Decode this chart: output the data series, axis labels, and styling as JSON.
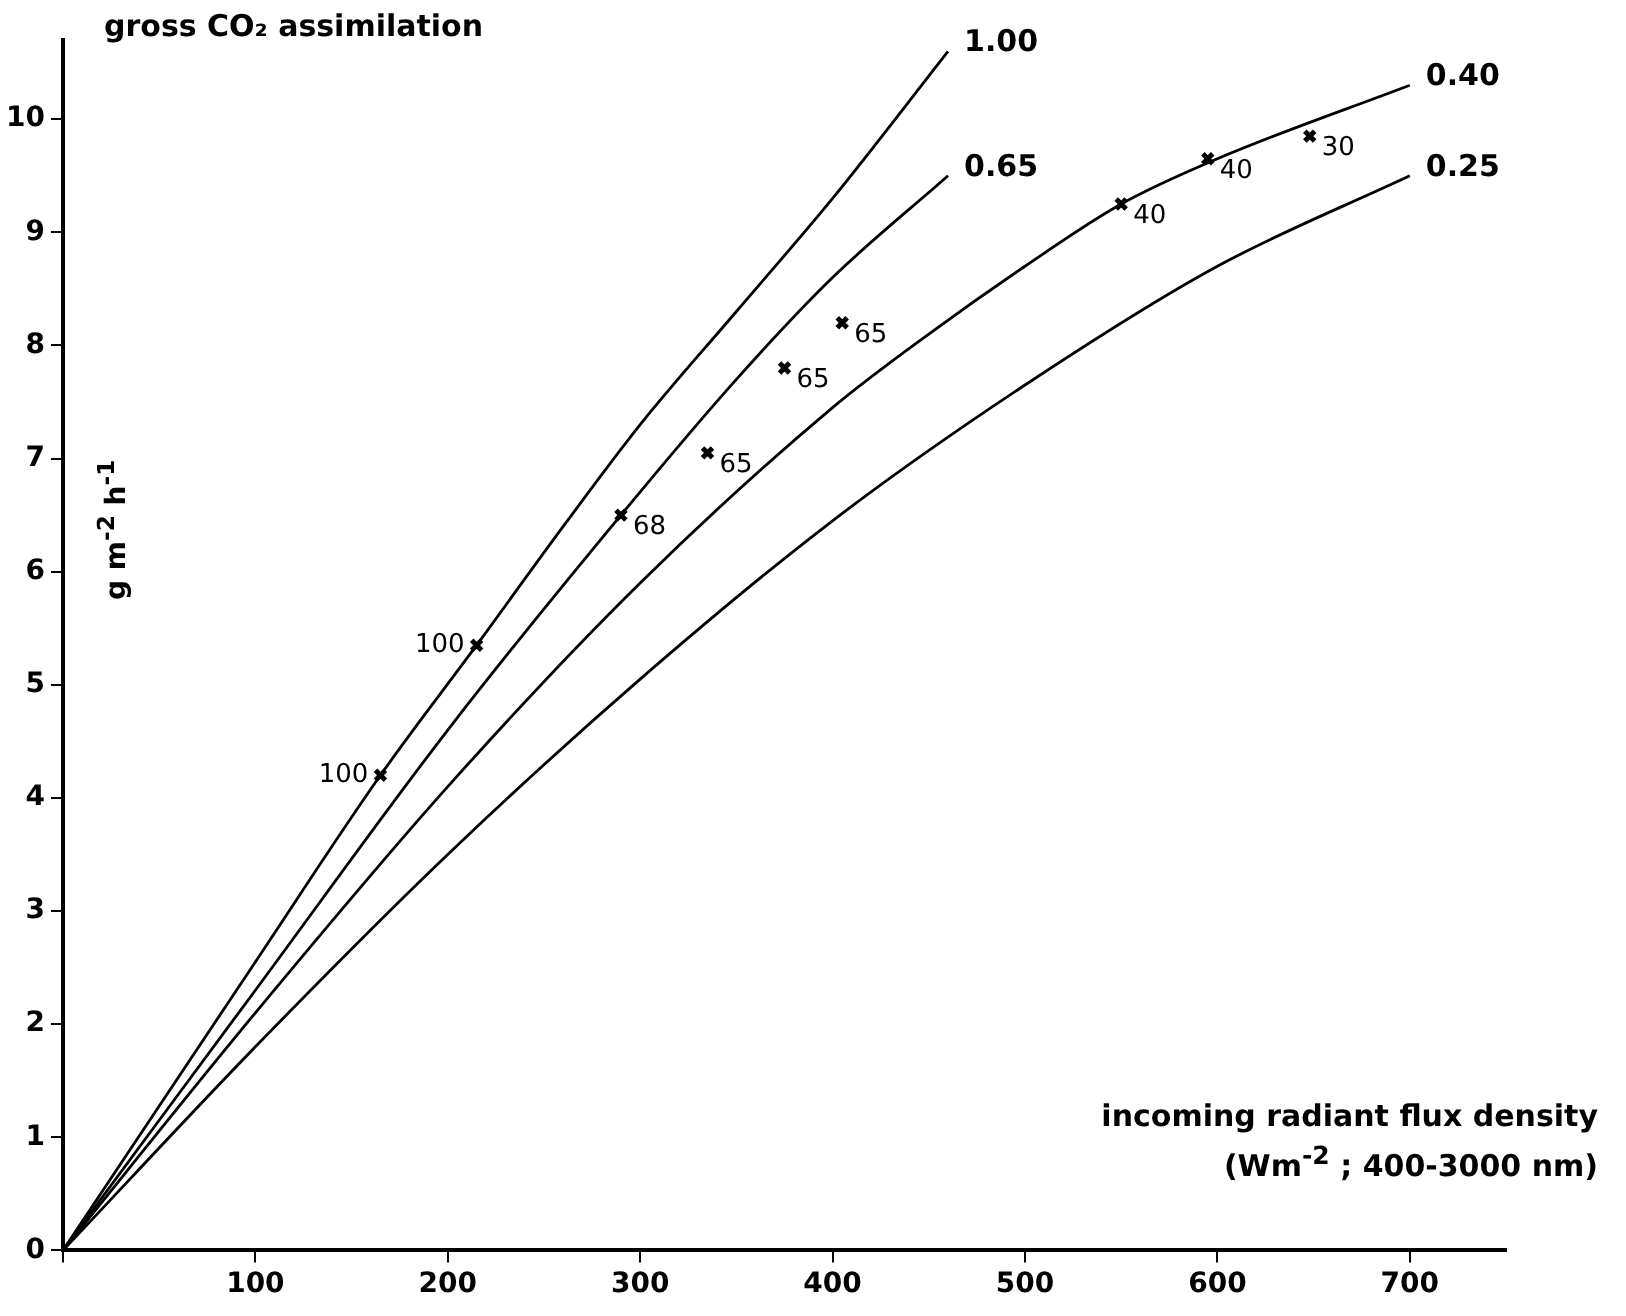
{
  "chart_data": {
    "type": "line",
    "title": "gross CO₂ assimilation",
    "ylabel": "g m$^{-2}$ h$^{-1}$",
    "xlabel": "incoming radiant flux density\n(Wm$^{-2}$ ; 400-3000 nm)",
    "xlim": [
      0,
      750
    ],
    "xticks": [
      {
        "value": 0,
        "label": null
      },
      100,
      200,
      300,
      400,
      500,
      600,
      700
    ],
    "ylim": [
      0,
      10.7
    ],
    "yticks": [
      0,
      1,
      2,
      3,
      4,
      5,
      6,
      7,
      8,
      9,
      10
    ],
    "grid": false,
    "legend": false,
    "line_style": "solid",
    "marker": "none",
    "series": [
      {
        "name": "1.00",
        "color": "#000000",
        "x": [
          0,
          100,
          165,
          215,
          260,
          300,
          350,
          400,
          460
        ],
        "values": [
          0,
          2.55,
          4.2,
          5.35,
          6.4,
          7.3,
          8.3,
          9.3,
          10.6
        ]
      },
      {
        "name": "0.65",
        "color": "#000000",
        "x": [
          0,
          100,
          200,
          290,
          350,
          400,
          460
        ],
        "values": [
          0,
          2.3,
          4.6,
          6.5,
          7.7,
          8.6,
          9.5
        ]
      },
      {
        "name": "0.40",
        "color": "#000000",
        "x": [
          0,
          100,
          200,
          300,
          400,
          450,
          500,
          550,
          600,
          700
        ],
        "values": [
          0,
          2.1,
          4.1,
          5.9,
          7.45,
          8.1,
          8.7,
          9.25,
          9.65,
          10.3
        ]
      },
      {
        "name": "0.25",
        "color": "#000000",
        "x": [
          0,
          100,
          200,
          300,
          400,
          500,
          600,
          700
        ],
        "values": [
          0,
          1.8,
          3.5,
          5.05,
          6.45,
          7.65,
          8.7,
          9.5
        ]
      },
      {
        "type": "scatter",
        "marker": "cross",
        "color": "#000000",
        "x": [
          165,
          215,
          290,
          335,
          375,
          405,
          550,
          595,
          648
        ],
        "values": [
          4.2,
          5.35,
          6.5,
          7.05,
          7.8,
          8.2,
          9.25,
          9.65,
          9.85
        ]
      }
    ],
    "annotations": [
      {
        "text": "100",
        "x": 165,
        "y": 4.2
      },
      {
        "text": "100",
        "x": 215,
        "y": 5.35
      },
      {
        "text": "68",
        "x": 290,
        "y": 6.5
      },
      {
        "text": "65",
        "x": 335,
        "y": 7.05
      },
      {
        "text": "65",
        "x": 375,
        "y": 7.8
      },
      {
        "text": "65",
        "x": 405,
        "y": 8.2
      },
      {
        "text": "40",
        "x": 550,
        "y": 9.25
      },
      {
        "text": "40",
        "x": 595,
        "y": 9.65
      },
      {
        "text": "30",
        "x": 648,
        "y": 9.85
      }
    ]
  }
}
